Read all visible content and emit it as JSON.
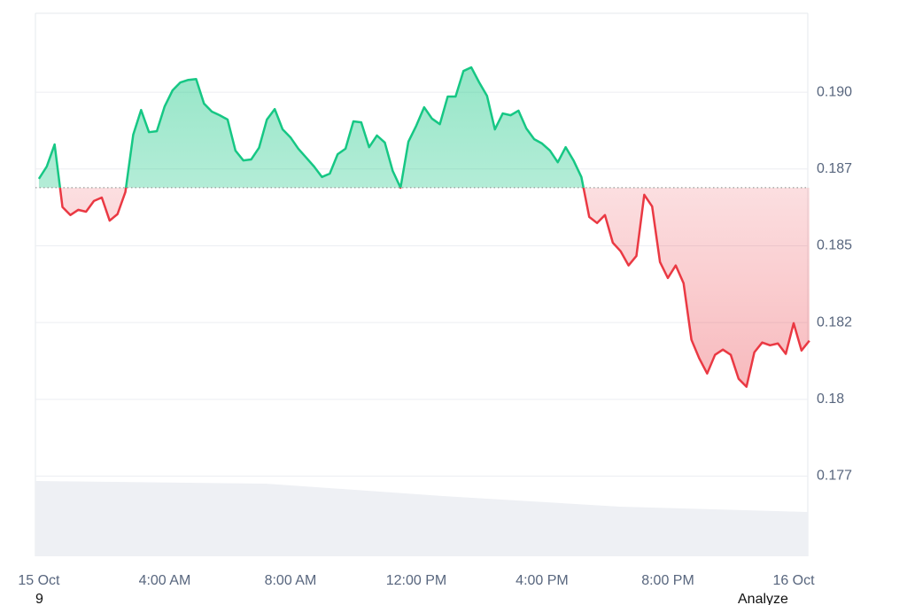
{
  "chart_data": {
    "type": "price-line",
    "x": [
      0,
      0.25,
      0.5,
      0.75,
      1,
      1.25,
      1.5,
      1.75,
      2,
      2.25,
      2.5,
      2.75,
      3,
      3.25,
      3.5,
      3.75,
      4,
      4.25,
      4.5,
      4.75,
      5,
      5.25,
      5.5,
      5.75,
      6,
      6.25,
      6.5,
      6.75,
      7,
      7.25,
      7.5,
      7.75,
      8,
      8.25,
      8.5,
      8.75,
      9,
      9.25,
      9.5,
      9.75,
      10,
      10.25,
      10.5,
      10.75,
      11,
      11.25,
      11.5,
      11.75,
      12,
      12.25,
      12.5,
      12.75,
      13,
      13.25,
      13.5,
      13.75,
      14,
      14.25,
      14.5,
      14.75,
      15,
      15.25,
      15.5,
      15.75,
      16,
      16.25,
      16.5,
      16.75,
      17,
      17.25,
      17.5,
      17.75,
      18,
      18.25,
      18.5,
      18.75,
      19,
      19.25,
      19.5,
      19.75,
      20,
      20.25,
      20.5,
      20.75,
      21,
      21.25,
      21.5,
      21.75,
      22,
      22.25,
      22.5,
      22.75,
      23,
      23.25,
      23.5,
      23.75,
      24,
      24.25,
      24.5
    ],
    "values": [
      0.18718,
      0.18758,
      0.1883,
      0.18626,
      0.186,
      0.18617,
      0.18611,
      0.18646,
      0.18657,
      0.18582,
      0.18603,
      0.18675,
      0.18862,
      0.18942,
      0.1887,
      0.18873,
      0.18954,
      0.19006,
      0.19032,
      0.1904,
      0.19043,
      0.18963,
      0.18937,
      0.18925,
      0.18911,
      0.1881,
      0.18778,
      0.18781,
      0.18819,
      0.18911,
      0.18945,
      0.18879,
      0.18853,
      0.18816,
      0.18787,
      0.18758,
      0.18724,
      0.18735,
      0.18798,
      0.18816,
      0.18905,
      0.18902,
      0.18821,
      0.18859,
      0.18836,
      0.18744,
      0.18689,
      0.18839,
      0.18891,
      0.18951,
      0.18914,
      0.18896,
      0.18986,
      0.18986,
      0.19069,
      0.19081,
      0.19032,
      0.18988,
      0.18879,
      0.18931,
      0.18925,
      0.1894,
      0.18882,
      0.18847,
      0.18833,
      0.1881,
      0.18772,
      0.18821,
      0.18778,
      0.18724,
      0.18594,
      0.18574,
      0.186,
      0.1851,
      0.18482,
      0.18436,
      0.18467,
      0.18666,
      0.18628,
      0.18447,
      0.18395,
      0.18436,
      0.18378,
      0.18194,
      0.18133,
      0.18084,
      0.18145,
      0.18162,
      0.18145,
      0.18067,
      0.18041,
      0.18153,
      0.18185,
      0.18176,
      0.18182,
      0.18148,
      0.18248,
      0.18159,
      0.18191
    ],
    "baseline": 0.18689,
    "up_color": "#16c784",
    "down_color": "#ea3943",
    "xlim": [
      -0.11,
      24.45
    ],
    "xticks": [
      {
        "value": 0,
        "label": "15 Oct"
      },
      {
        "value": 4,
        "label": "4:00 AM"
      },
      {
        "value": 8,
        "label": "8:00 AM"
      },
      {
        "value": 12,
        "label": "12:00 PM"
      },
      {
        "value": 16,
        "label": "4:00 PM"
      },
      {
        "value": 20,
        "label": "8:00 PM"
      },
      {
        "value": 24,
        "label": "16 Oct"
      }
    ],
    "ylim": [
      0.17489,
      0.19257
    ],
    "yticks": [
      {
        "value": 0.1775,
        "label": "0.177"
      },
      0.18,
      {
        "value": 0.1825,
        "label": "0.182"
      },
      0.185,
      {
        "value": 0.1875,
        "label": "0.187"
      },
      {
        "value": 0.19,
        "label": "0.190"
      }
    ],
    "grid": true
  },
  "footer": {
    "left": "9",
    "right": "Analyze"
  }
}
